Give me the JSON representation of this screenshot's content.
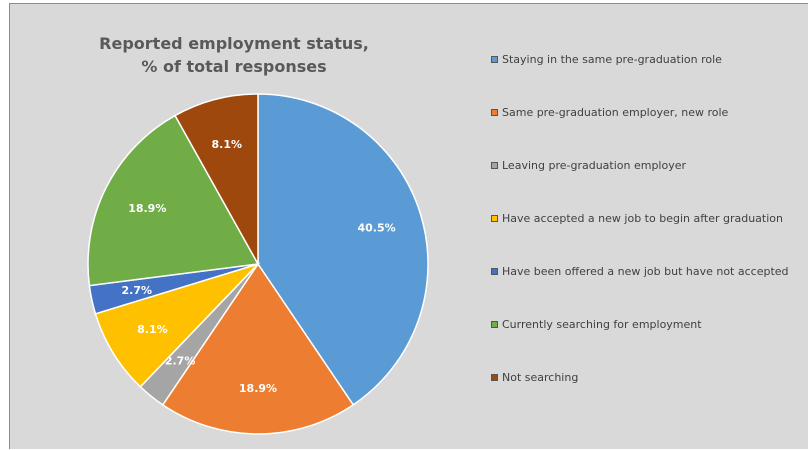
{
  "chart_data": {
    "type": "pie",
    "title_lines": [
      "Reported employment status,",
      "% of total responses"
    ],
    "legend_position": "right",
    "slices": [
      {
        "label": "Staying in the same pre-graduation role",
        "value": 40.5,
        "display": "40.5%",
        "color": "#5b9bd5",
        "label_color": "#ffffff"
      },
      {
        "label": "Same pre-graduation employer, new role",
        "value": 18.9,
        "display": "18.9%",
        "color": "#ed7d31",
        "label_color": "#ffffff"
      },
      {
        "label": "Leaving pre-graduation employer",
        "value": 2.7,
        "display": "2.7%",
        "color": "#a5a5a5",
        "label_color": "#ffffff"
      },
      {
        "label": "Have accepted a new job to begin after graduation",
        "value": 8.1,
        "display": "8.1%",
        "color": "#ffc000",
        "label_color": "#ffffff"
      },
      {
        "label": "Have been offered a new job but have not accepted",
        "value": 2.7,
        "display": "2.7%",
        "color": "#4472c4",
        "label_color": "#ffffff"
      },
      {
        "label": "Currently searching for employment",
        "value": 18.9,
        "display": "18.9%",
        "color": "#70ad47",
        "label_color": "#ffffff"
      },
      {
        "label": "Not searching",
        "value": 8.1,
        "display": "8.1%",
        "color": "#9e480e",
        "label_color": "#ffffff"
      }
    ]
  }
}
